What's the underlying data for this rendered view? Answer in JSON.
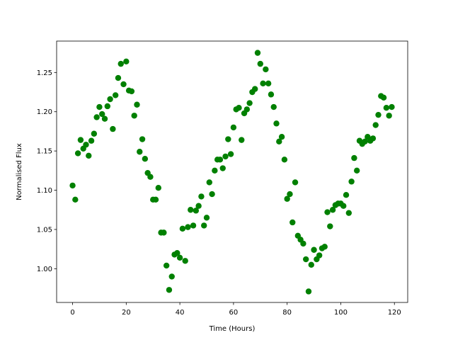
{
  "chart_data": {
    "type": "scatter",
    "xlabel": "Time (Hours)",
    "ylabel": "Normalised Flux",
    "color": "#008000",
    "xlim": [
      -5.95,
      124.95
    ],
    "ylim": [
      0.957,
      1.29
    ],
    "xticks": [
      0,
      20,
      40,
      60,
      80,
      100,
      120
    ],
    "yticks": [
      {
        "value": 1.0,
        "label": "1.00"
      },
      1.05,
      {
        "value": 1.1,
        "label": "1.10"
      },
      1.15,
      {
        "value": 1.2,
        "label": "1.20"
      },
      1.25
    ],
    "x": [
      0,
      1,
      2,
      3,
      4,
      5,
      6,
      7,
      8,
      9,
      10,
      11,
      12,
      13,
      14,
      15,
      16,
      17,
      18,
      19,
      20,
      21,
      22,
      23,
      24,
      25,
      26,
      27,
      28,
      29,
      30,
      31,
      32,
      33,
      34,
      35,
      36,
      37,
      38,
      39,
      40,
      41,
      42,
      43,
      44,
      45,
      46,
      47,
      48,
      49,
      50,
      51,
      52,
      53,
      54,
      55,
      56,
      57,
      58,
      59,
      60,
      61,
      62,
      63,
      64,
      65,
      66,
      67,
      68,
      69,
      70,
      71,
      72,
      73,
      74,
      75,
      76,
      77,
      78,
      79,
      80,
      81,
      82,
      83,
      84,
      85,
      86,
      87,
      88,
      89,
      90,
      91,
      92,
      93,
      94,
      95,
      96,
      97,
      98,
      99,
      100,
      101,
      102,
      103,
      104,
      105,
      106,
      107,
      108,
      109,
      110,
      111,
      112,
      113,
      114,
      115,
      116,
      117,
      118,
      119
    ],
    "values": [
      1.106,
      1.088,
      1.147,
      1.164,
      1.153,
      1.158,
      1.144,
      1.163,
      1.172,
      1.193,
      1.206,
      1.197,
      1.191,
      1.207,
      1.216,
      1.178,
      1.221,
      1.243,
      1.261,
      1.235,
      1.264,
      1.227,
      1.226,
      1.195,
      1.209,
      1.149,
      1.165,
      1.14,
      1.122,
      1.117,
      1.088,
      1.088,
      1.103,
      1.046,
      1.046,
      1.004,
      0.973,
      0.99,
      1.018,
      1.02,
      1.014,
      1.051,
      1.01,
      1.053,
      1.075,
      1.055,
      1.074,
      1.08,
      1.092,
      1.055,
      1.065,
      1.11,
      1.095,
      1.125,
      1.139,
      1.139,
      1.128,
      1.143,
      1.165,
      1.146,
      1.18,
      1.203,
      1.205,
      1.164,
      1.198,
      1.203,
      1.211,
      1.225,
      1.229,
      1.275,
      1.261,
      1.236,
      1.254,
      1.236,
      1.222,
      1.206,
      1.185,
      1.162,
      1.168,
      1.139,
      1.089,
      1.095,
      1.059,
      1.11,
      1.042,
      1.037,
      1.032,
      1.012,
      0.971,
      1.005,
      1.024,
      1.012,
      1.017,
      1.026,
      1.028,
      1.072,
      1.054,
      1.075,
      1.081,
      1.083,
      1.083,
      1.08,
      1.094,
      1.071,
      1.111,
      1.141,
      1.125,
      1.163,
      1.159,
      1.162,
      1.168,
      1.163,
      1.166,
      1.183,
      1.196,
      1.22,
      1.218,
      1.205,
      1.195,
      1.206
    ]
  }
}
